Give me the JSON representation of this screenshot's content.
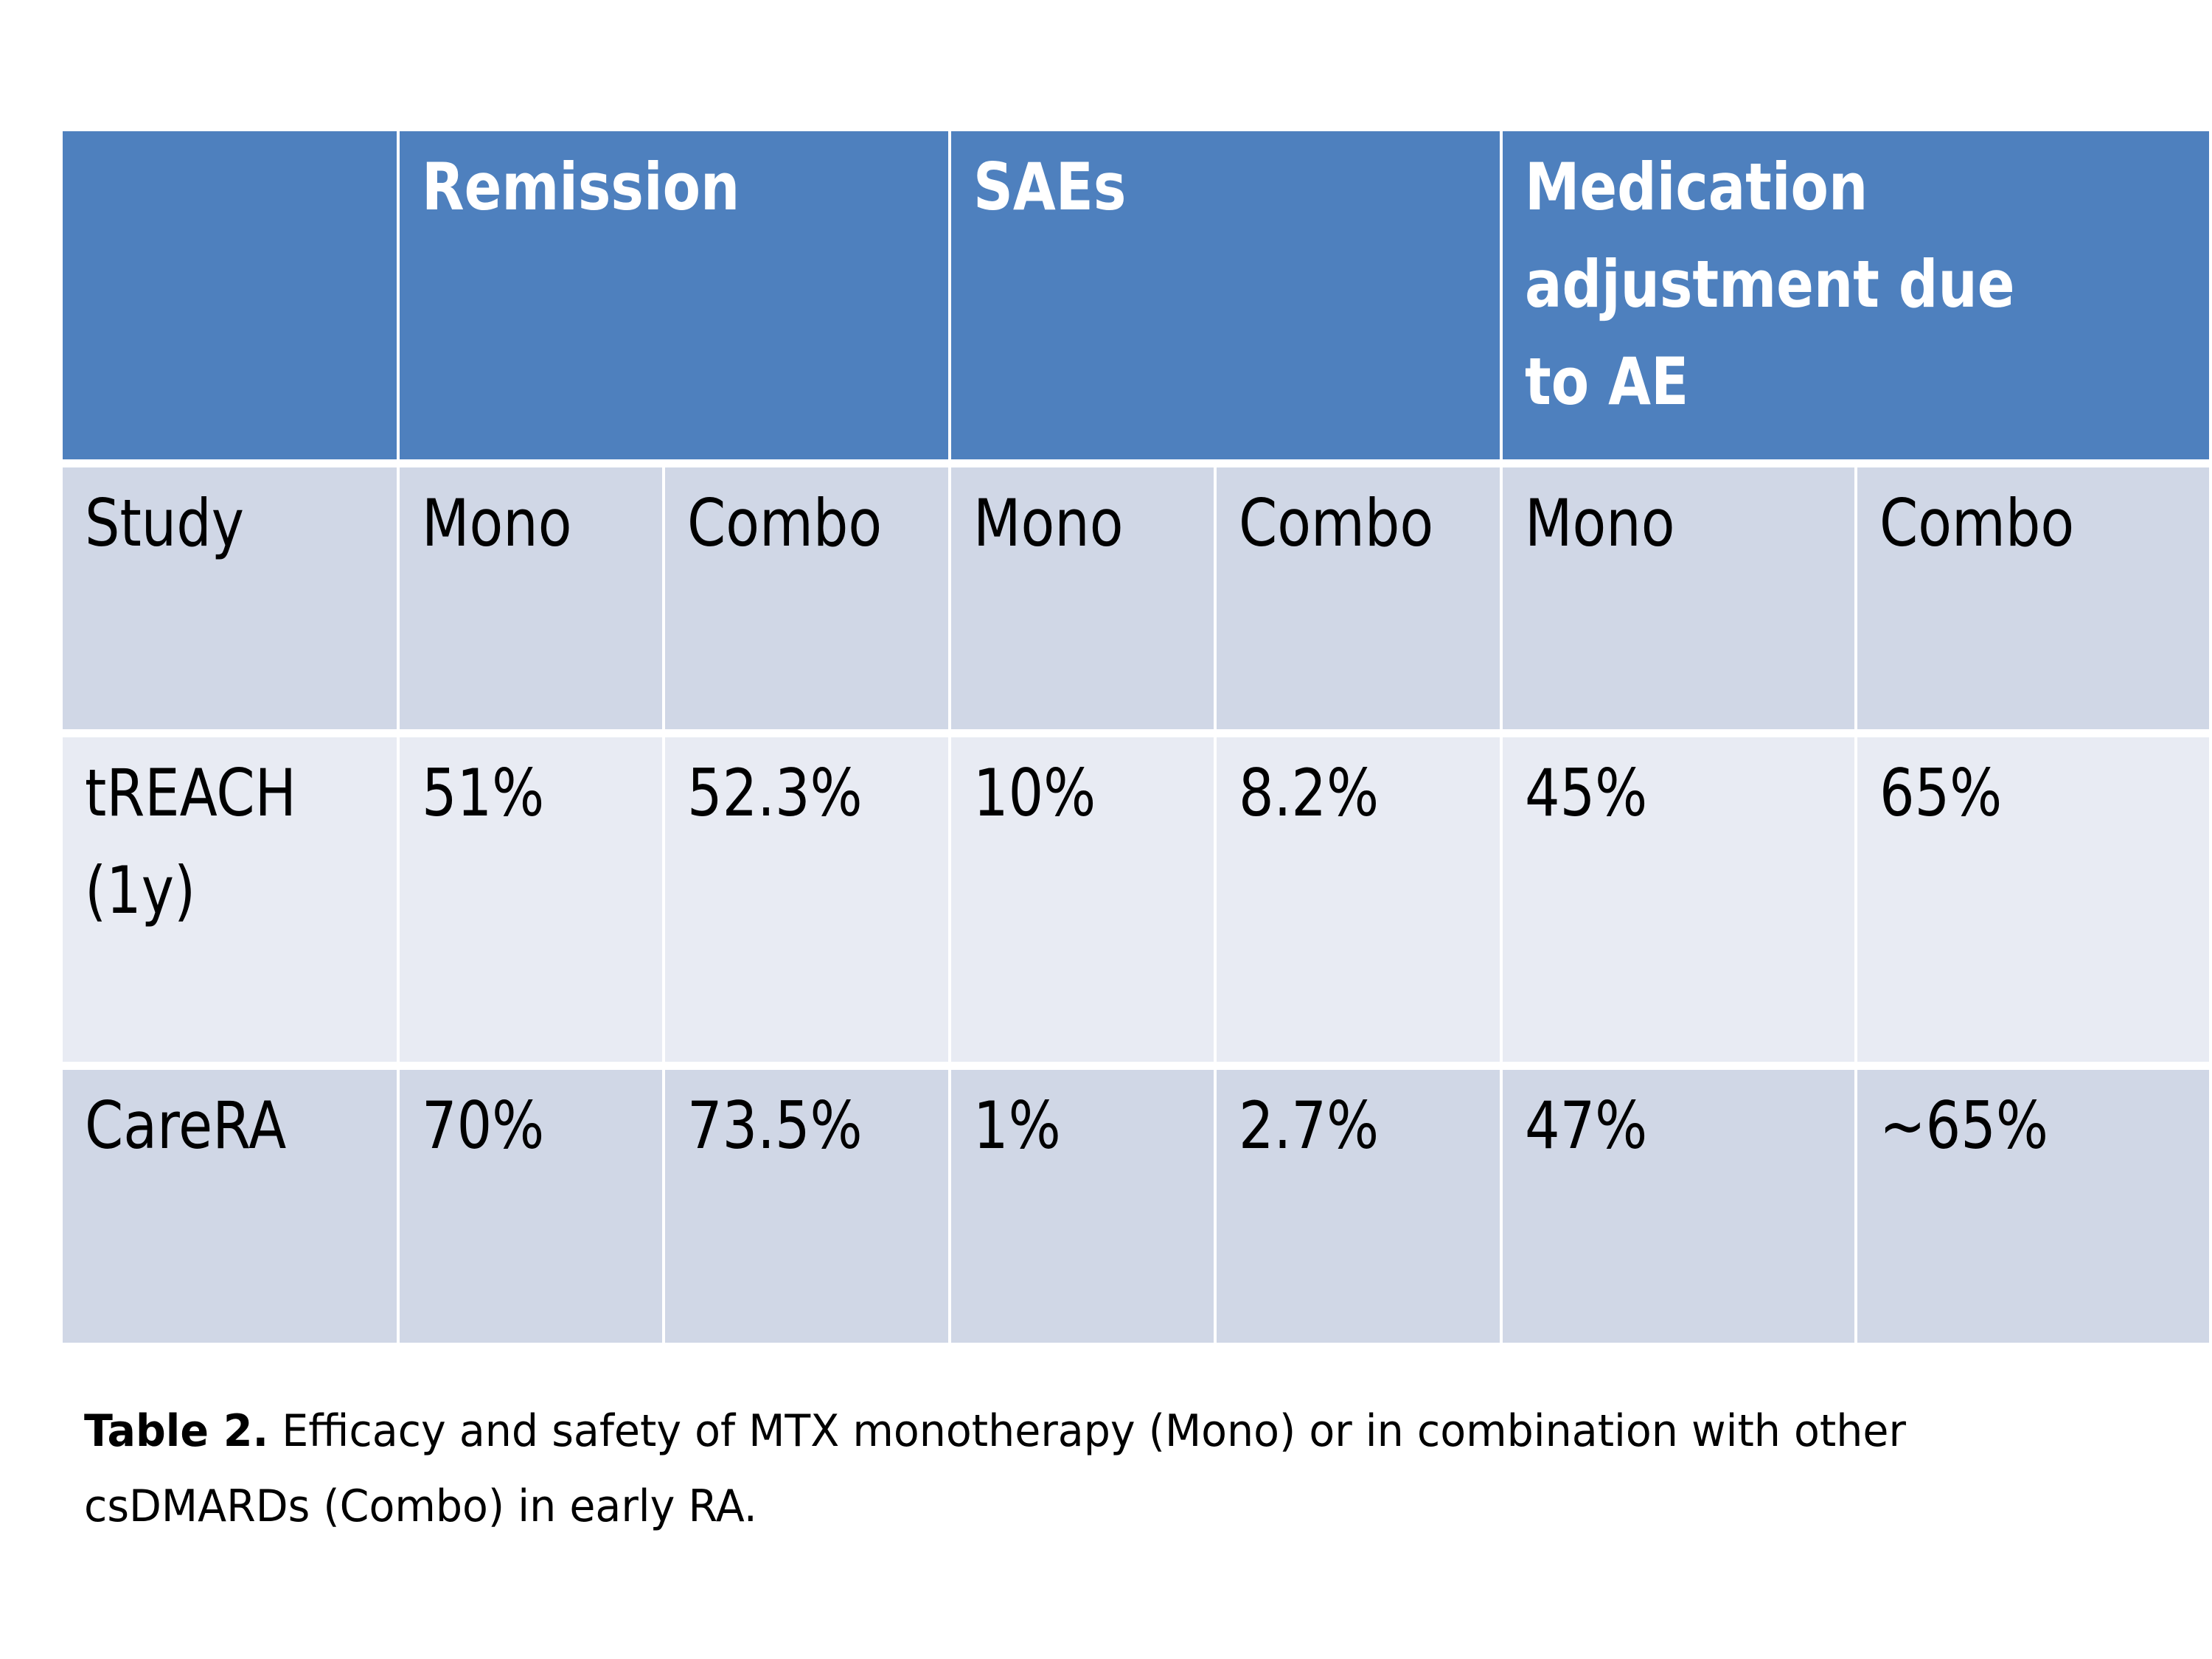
{
  "table": {
    "header_groups": {
      "blank": "",
      "remission": "Remission",
      "saes": "SAEs",
      "med_adjust": "Medication adjustment due to AE"
    },
    "columns": [
      "Study",
      "Mono",
      "Combo",
      "Mono",
      "Combo",
      "Mono",
      "Combo"
    ],
    "rows": [
      {
        "study": "tREACH (1y)",
        "values": [
          "51%",
          "52.3%",
          "10%",
          "8.2%",
          "45%",
          "65%"
        ]
      },
      {
        "study": "CareRA",
        "values": [
          "70%",
          "73.5%",
          "1%",
          "2.7%",
          "47%",
          "~65%"
        ]
      }
    ]
  },
  "caption": {
    "label": "Table 2.",
    "text": " Efficacy and safety of MTX monotherapy (Mono) or in combination with other csDMARDs (Combo) in early RA."
  },
  "colors": {
    "header_blue": "#4E80BE",
    "band_dark": "#D0D7E6",
    "band_light": "#E8EBF3",
    "header_text": "#FFFFFF",
    "body_text": "#000000"
  }
}
